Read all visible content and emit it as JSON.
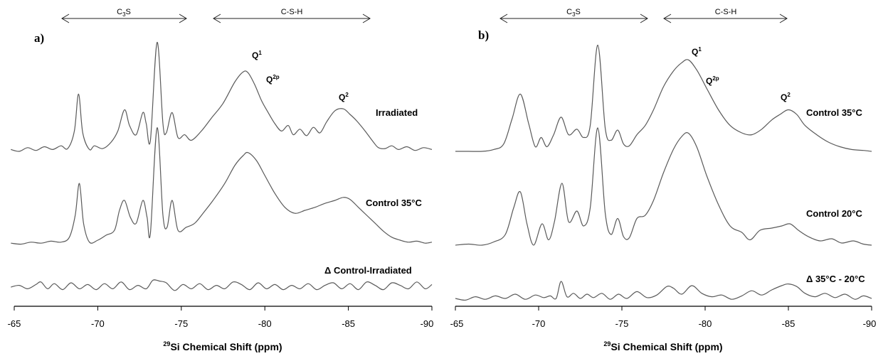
{
  "colors": {
    "trace": "#5a5a5a",
    "axis": "#000000"
  },
  "chart_data": [
    {
      "type": "line",
      "panel": "a)",
      "xlabel_sup": "29",
      "xlabel": "Si Chemical Shift (ppm)",
      "xlim": [
        -65,
        -90
      ],
      "xticks": [
        -65,
        -70,
        -75,
        -80,
        -85,
        -90
      ],
      "grid": false,
      "ranges": [
        {
          "label_main": "C",
          "label_sub": "3",
          "label_tail": "S",
          "from": -68.3,
          "to": -75.3
        },
        {
          "label_main": "C-S-H",
          "label_sub": "",
          "label_tail": "",
          "from": -76.3,
          "to": -87.2
        }
      ],
      "peak_labels": [
        {
          "base": "Q",
          "sup": "1",
          "x": -79.0,
          "y": 0.97
        },
        {
          "base": "Q",
          "sup": "2p",
          "x": -80.4,
          "y": 0.74
        },
        {
          "base": "Q",
          "sup": "2",
          "x": -84.3,
          "y": 0.5
        }
      ],
      "series": [
        {
          "name": "Irradiated",
          "x": [
            -64.8,
            -65.3,
            -65.8,
            -66.3,
            -66.8,
            -67.3,
            -67.8,
            -68.2,
            -68.6,
            -68.85,
            -69.1,
            -69.5,
            -69.8,
            -70.3,
            -70.8,
            -71.2,
            -71.6,
            -71.9,
            -72.3,
            -72.7,
            -72.9,
            -73.15,
            -73.55,
            -73.9,
            -74.1,
            -74.45,
            -74.8,
            -75.2,
            -75.6,
            -76.2,
            -76.8,
            -77.5,
            -78.2,
            -78.7,
            -79.0,
            -79.4,
            -79.8,
            -80.2,
            -80.6,
            -81.0,
            -81.4,
            -81.7,
            -82.1,
            -82.5,
            -82.9,
            -83.3,
            -83.7,
            -84.2,
            -84.7,
            -85.1,
            -85.5,
            -86.0,
            -86.5,
            -86.8,
            -87.2,
            -87.6,
            -88.0,
            -88.5,
            -89.0,
            -89.5,
            -90.0
          ],
          "y": [
            0.02,
            0.0,
            0.04,
            0.01,
            0.05,
            0.02,
            0.06,
            0.03,
            0.22,
            0.62,
            0.2,
            0.02,
            0.06,
            0.03,
            0.1,
            0.22,
            0.45,
            0.28,
            0.18,
            0.42,
            0.3,
            0.12,
            1.18,
            0.3,
            0.2,
            0.42,
            0.15,
            0.18,
            0.12,
            0.22,
            0.36,
            0.52,
            0.75,
            0.86,
            0.85,
            0.72,
            0.55,
            0.42,
            0.3,
            0.22,
            0.28,
            0.18,
            0.24,
            0.17,
            0.26,
            0.2,
            0.32,
            0.44,
            0.46,
            0.4,
            0.33,
            0.22,
            0.1,
            0.04,
            0.03,
            0.06,
            0.02,
            0.05,
            0.01,
            0.04,
            0.02
          ]
        },
        {
          "name": "Control 35°C",
          "x": [
            -64.8,
            -65.4,
            -66.0,
            -66.6,
            -67.2,
            -67.8,
            -68.3,
            -68.65,
            -68.9,
            -69.15,
            -69.5,
            -70.0,
            -70.5,
            -71.0,
            -71.3,
            -71.6,
            -71.95,
            -72.3,
            -72.7,
            -72.95,
            -73.15,
            -73.55,
            -73.9,
            -74.15,
            -74.45,
            -74.8,
            -75.3,
            -75.8,
            -76.3,
            -76.9,
            -77.6,
            -78.2,
            -78.7,
            -79.0,
            -79.5,
            -80.0,
            -80.6,
            -81.2,
            -81.8,
            -82.4,
            -83.0,
            -83.6,
            -84.2,
            -84.7,
            -85.1,
            -85.6,
            -86.1,
            -86.6,
            -87.1,
            -87.6,
            -88.1,
            -88.6,
            -89.1,
            -89.6,
            -90.0
          ],
          "y": [
            0.02,
            0.01,
            0.03,
            0.02,
            0.04,
            0.03,
            0.08,
            0.3,
            0.62,
            0.22,
            0.03,
            0.05,
            0.1,
            0.15,
            0.35,
            0.45,
            0.28,
            0.22,
            0.45,
            0.28,
            0.12,
            1.18,
            0.3,
            0.18,
            0.45,
            0.15,
            0.18,
            0.22,
            0.32,
            0.45,
            0.62,
            0.8,
            0.9,
            0.93,
            0.85,
            0.7,
            0.52,
            0.38,
            0.32,
            0.35,
            0.38,
            0.42,
            0.45,
            0.48,
            0.46,
            0.38,
            0.3,
            0.22,
            0.14,
            0.08,
            0.05,
            0.03,
            0.04,
            0.02,
            0.03
          ]
        },
        {
          "name": "Δ Control-Irradiated",
          "x": [
            -64.8,
            -65.3,
            -65.8,
            -66.3,
            -66.6,
            -67.0,
            -67.4,
            -67.9,
            -68.4,
            -68.9,
            -69.4,
            -69.9,
            -70.4,
            -70.9,
            -71.4,
            -71.9,
            -72.4,
            -72.9,
            -73.3,
            -73.7,
            -74.1,
            -74.6,
            -75.1,
            -75.6,
            -76.1,
            -76.6,
            -77.1,
            -77.6,
            -78.1,
            -78.6,
            -79.1,
            -79.6,
            -80.1,
            -80.6,
            -81.1,
            -81.6,
            -82.1,
            -82.6,
            -83.1,
            -83.6,
            -84.1,
            -84.6,
            -85.1,
            -85.6,
            -86.1,
            -86.6,
            -87.1,
            -87.6,
            -88.1,
            -88.6,
            -89.1,
            -89.6,
            -90.0
          ],
          "y": [
            0.0,
            0.02,
            -0.02,
            0.03,
            0.06,
            -0.02,
            0.04,
            -0.03,
            0.05,
            -0.02,
            0.03,
            -0.03,
            0.04,
            -0.02,
            0.06,
            -0.03,
            0.02,
            -0.02,
            0.08,
            0.07,
            0.05,
            -0.04,
            0.03,
            -0.02,
            0.04,
            -0.03,
            0.02,
            -0.02,
            0.06,
            0.03,
            -0.03,
            0.05,
            -0.02,
            0.03,
            -0.03,
            0.02,
            -0.02,
            0.04,
            -0.03,
            0.02,
            0.05,
            -0.02,
            0.04,
            -0.03,
            0.06,
            0.02,
            -0.03,
            0.05,
            0.02,
            -0.02,
            0.06,
            -0.02,
            0.03
          ]
        }
      ]
    },
    {
      "type": "line",
      "panel": "b)",
      "xlabel_sup": "29",
      "xlabel": "Si Chemical Shift (ppm)",
      "xlim": [
        -65,
        -90
      ],
      "xticks": [
        -65,
        -70,
        -75,
        -80,
        -85,
        -90
      ],
      "grid": false,
      "ranges": [
        {
          "label_main": "C",
          "label_sub": "3",
          "label_tail": "S",
          "from": -68.0,
          "to": -76.8
        },
        {
          "label_main": "C-S-H",
          "label_sub": "",
          "label_tail": "",
          "from": -77.3,
          "to": -85.0
        }
      ],
      "peak_labels": [
        {
          "base": "Q",
          "sup": "1",
          "x": -79.0,
          "y": 0.99
        },
        {
          "base": "Q",
          "sup": "2p",
          "x": -80.8,
          "y": 0.74
        },
        {
          "base": "Q",
          "sup": "2",
          "x": -85.0,
          "y": 0.5
        }
      ],
      "series": [
        {
          "name": "Control 35°C",
          "x": [
            -65.0,
            -65.8,
            -66.6,
            -67.3,
            -67.9,
            -68.4,
            -68.9,
            -69.4,
            -69.8,
            -70.15,
            -70.5,
            -70.9,
            -71.35,
            -71.8,
            -72.3,
            -72.7,
            -73.1,
            -73.55,
            -74.0,
            -74.35,
            -74.75,
            -75.1,
            -75.45,
            -75.9,
            -76.4,
            -76.9,
            -77.5,
            -78.1,
            -78.6,
            -79.0,
            -79.5,
            -80.1,
            -80.8,
            -81.5,
            -82.2,
            -82.8,
            -83.4,
            -84.0,
            -84.5,
            -85.0,
            -85.5,
            -86.0,
            -86.7,
            -87.4,
            -88.1,
            -88.8,
            -89.5,
            -90.0
          ],
          "y": [
            0.0,
            0.0,
            0.0,
            0.02,
            0.08,
            0.35,
            0.62,
            0.3,
            0.05,
            0.15,
            0.05,
            0.18,
            0.37,
            0.18,
            0.24,
            0.15,
            0.28,
            1.15,
            0.25,
            0.12,
            0.23,
            0.08,
            0.06,
            0.18,
            0.28,
            0.45,
            0.7,
            0.87,
            0.96,
            0.99,
            0.88,
            0.68,
            0.45,
            0.28,
            0.2,
            0.18,
            0.24,
            0.34,
            0.4,
            0.45,
            0.4,
            0.28,
            0.18,
            0.1,
            0.05,
            0.02,
            0.01,
            0.0
          ]
        },
        {
          "name": "Control 20°C",
          "x": [
            -65.0,
            -65.8,
            -66.6,
            -67.3,
            -68.0,
            -68.5,
            -68.9,
            -69.3,
            -69.7,
            -70.2,
            -70.6,
            -70.95,
            -71.4,
            -71.8,
            -72.3,
            -72.7,
            -73.1,
            -73.55,
            -74.0,
            -74.35,
            -74.75,
            -75.1,
            -75.45,
            -75.9,
            -76.4,
            -76.9,
            -77.5,
            -78.1,
            -78.6,
            -79.0,
            -79.5,
            -80.1,
            -80.8,
            -81.5,
            -82.2,
            -82.7,
            -83.3,
            -84.0,
            -84.6,
            -85.1,
            -85.6,
            -86.2,
            -86.9,
            -87.6,
            -88.2,
            -88.9,
            -89.5,
            -90.0
          ],
          "y": [
            0.0,
            0.01,
            0.0,
            0.03,
            0.1,
            0.35,
            0.5,
            0.2,
            0.0,
            0.2,
            0.05,
            0.22,
            0.58,
            0.22,
            0.32,
            0.18,
            0.35,
            1.1,
            0.3,
            0.1,
            0.25,
            0.08,
            0.07,
            0.25,
            0.28,
            0.42,
            0.68,
            0.9,
            1.02,
            1.05,
            0.92,
            0.65,
            0.38,
            0.18,
            0.12,
            0.05,
            0.14,
            0.16,
            0.18,
            0.2,
            0.14,
            0.08,
            0.04,
            0.06,
            0.02,
            0.04,
            0.01,
            0.0
          ]
        },
        {
          "name": "Δ 35°C - 20°C",
          "x": [
            -65.0,
            -65.6,
            -66.2,
            -66.8,
            -67.4,
            -68.0,
            -68.6,
            -69.2,
            -69.8,
            -70.3,
            -70.7,
            -71.05,
            -71.35,
            -71.7,
            -72.1,
            -72.5,
            -72.9,
            -73.3,
            -73.8,
            -74.3,
            -74.8,
            -75.3,
            -75.9,
            -76.5,
            -77.1,
            -77.7,
            -78.1,
            -78.6,
            -79.2,
            -79.8,
            -80.4,
            -81.0,
            -81.6,
            -82.2,
            -82.8,
            -83.4,
            -84.0,
            -84.6,
            -85.0,
            -85.5,
            -86.0,
            -86.6,
            -87.2,
            -87.8,
            -88.4,
            -89.0,
            -89.5,
            -90.0
          ],
          "y": [
            0.0,
            -0.02,
            0.02,
            -0.01,
            0.03,
            0.0,
            0.05,
            -0.01,
            0.04,
            0.01,
            0.03,
            0.0,
            0.2,
            0.02,
            0.06,
            0.0,
            0.05,
            0.01,
            0.06,
            -0.01,
            0.05,
            0.0,
            0.08,
            0.01,
            0.04,
            0.14,
            0.12,
            0.05,
            0.15,
            0.06,
            0.02,
            0.04,
            -0.01,
            0.03,
            0.09,
            0.04,
            0.1,
            0.15,
            0.17,
            0.14,
            0.06,
            0.02,
            0.06,
            0.01,
            0.05,
            -0.01,
            0.03,
            0.0
          ]
        }
      ]
    }
  ],
  "panels": [
    {
      "letter": "a)",
      "range1": {
        "main": "C",
        "sub": "3",
        "tail": "S"
      },
      "range2": {
        "main": "C-S-H"
      },
      "ticks": [
        "-65",
        "-70",
        "-75",
        "-80",
        "-85",
        "-90"
      ],
      "axis_title_sup": "29",
      "axis_title": "Si Chemical Shift (ppm)",
      "trace_labels": [
        "Irradiated",
        "Control 35°C",
        "Δ Control-Irradiated"
      ],
      "peaks": [
        {
          "base": "Q",
          "sup": "1"
        },
        {
          "base": "Q",
          "sup": "2p"
        },
        {
          "base": "Q",
          "sup": "2"
        }
      ]
    },
    {
      "letter": "b)",
      "range1": {
        "main": "C",
        "sub": "3",
        "tail": "S"
      },
      "range2": {
        "main": "C-S-H"
      },
      "ticks": [
        "-65",
        "-70",
        "-75",
        "-80",
        "-85",
        "-90"
      ],
      "axis_title_sup": "29",
      "axis_title": "Si Chemical Shift (ppm)",
      "trace_labels": [
        "Control 35°C",
        "Control 20°C",
        "Δ 35°C - 20°C"
      ],
      "peaks": [
        {
          "base": "Q",
          "sup": "1"
        },
        {
          "base": "Q",
          "sup": "2p"
        },
        {
          "base": "Q",
          "sup": "2"
        }
      ]
    }
  ]
}
